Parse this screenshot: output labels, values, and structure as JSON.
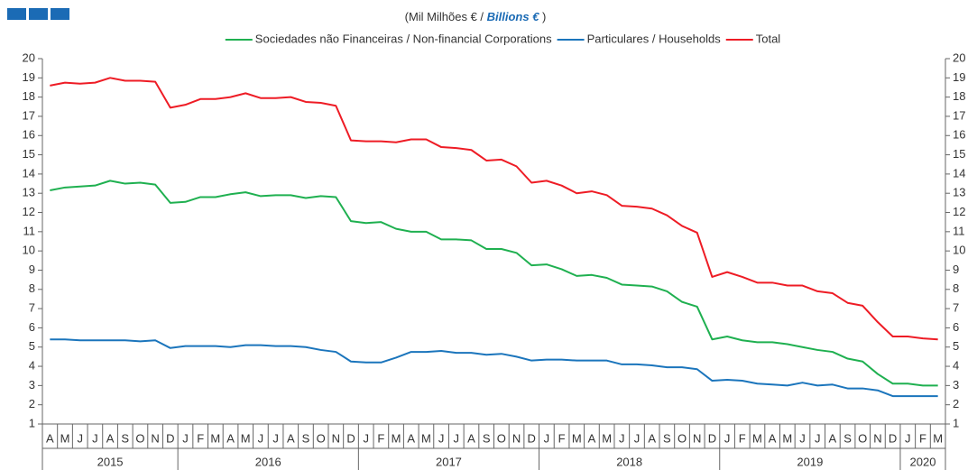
{
  "chart_data": {
    "type": "line",
    "title": {
      "pt": "(Mil Milhões € / ",
      "en": "Billions  €",
      "close": " )"
    },
    "categories": [
      "A",
      "M",
      "J",
      "J",
      "A",
      "S",
      "O",
      "N",
      "D",
      "J",
      "F",
      "M",
      "A",
      "M",
      "J",
      "J",
      "A",
      "S",
      "O",
      "N",
      "D",
      "J",
      "F",
      "M",
      "A",
      "M",
      "J",
      "J",
      "A",
      "S",
      "O",
      "N",
      "D",
      "J",
      "F",
      "M",
      "A",
      "M",
      "J",
      "J",
      "A",
      "S",
      "O",
      "N",
      "D",
      "J",
      "F",
      "M",
      "A",
      "M",
      "J",
      "J",
      "A",
      "S",
      "O",
      "N",
      "D",
      "J",
      "F",
      "M"
    ],
    "years": [
      "2015",
      "2015",
      "2015",
      "2015",
      "2015",
      "2015",
      "2015",
      "2015",
      "2015",
      "2016",
      "2016",
      "2016",
      "2016",
      "2016",
      "2016",
      "2016",
      "2016",
      "2016",
      "2016",
      "2016",
      "2016",
      "2017",
      "2017",
      "2017",
      "2017",
      "2017",
      "2017",
      "2017",
      "2017",
      "2017",
      "2017",
      "2017",
      "2017",
      "2018",
      "2018",
      "2018",
      "2018",
      "2018",
      "2018",
      "2018",
      "2018",
      "2018",
      "2018",
      "2018",
      "2018",
      "2019",
      "2019",
      "2019",
      "2019",
      "2019",
      "2019",
      "2019",
      "2019",
      "2019",
      "2019",
      "2019",
      "2019",
      "2020",
      "2020",
      "2020"
    ],
    "series": [
      {
        "name": "Sociedades não Financeiras / Non-financial Corporations",
        "color": "#1fb050",
        "values": [
          13.15,
          13.3,
          13.35,
          13.4,
          13.65,
          13.5,
          13.55,
          13.45,
          12.5,
          12.55,
          12.8,
          12.8,
          12.95,
          13.05,
          12.85,
          12.9,
          12.9,
          12.75,
          12.85,
          12.8,
          11.55,
          11.45,
          11.5,
          11.15,
          11.0,
          11.0,
          10.6,
          10.6,
          10.55,
          10.1,
          10.1,
          9.9,
          9.25,
          9.3,
          9.05,
          8.7,
          8.75,
          8.6,
          8.25,
          8.2,
          8.15,
          7.9,
          7.35,
          7.1,
          5.4,
          5.55,
          5.35,
          5.25,
          5.25,
          5.15,
          5.0,
          4.85,
          4.75,
          4.4,
          4.25,
          3.6,
          3.1,
          3.1,
          3.0,
          3.0
        ]
      },
      {
        "name": "Particulares / Households",
        "color": "#1b75bc",
        "values": [
          5.4,
          5.4,
          5.35,
          5.35,
          5.35,
          5.35,
          5.3,
          5.35,
          4.95,
          5.05,
          5.05,
          5.05,
          5.0,
          5.1,
          5.1,
          5.05,
          5.05,
          5.0,
          4.85,
          4.75,
          4.25,
          4.2,
          4.2,
          4.45,
          4.75,
          4.75,
          4.8,
          4.7,
          4.7,
          4.6,
          4.65,
          4.5,
          4.3,
          4.35,
          4.35,
          4.3,
          4.3,
          4.3,
          4.1,
          4.1,
          4.05,
          3.95,
          3.95,
          3.85,
          3.25,
          3.3,
          3.25,
          3.1,
          3.05,
          3.0,
          3.15,
          3.0,
          3.05,
          2.85,
          2.85,
          2.75,
          2.45,
          2.45,
          2.45,
          2.45
        ]
      },
      {
        "name": "Total",
        "color": "#ee1c25",
        "values": [
          18.6,
          18.75,
          18.7,
          18.75,
          19.0,
          18.85,
          18.85,
          18.8,
          17.45,
          17.6,
          17.9,
          17.9,
          18.0,
          18.2,
          17.95,
          17.95,
          18.0,
          17.75,
          17.7,
          17.55,
          15.75,
          15.7,
          15.7,
          15.65,
          15.8,
          15.8,
          15.4,
          15.35,
          15.25,
          14.7,
          14.75,
          14.4,
          13.55,
          13.65,
          13.4,
          13.0,
          13.1,
          12.9,
          12.35,
          12.3,
          12.2,
          11.85,
          11.3,
          10.95,
          8.65,
          8.9,
          8.65,
          8.35,
          8.35,
          8.2,
          8.2,
          7.9,
          7.8,
          7.3,
          7.15,
          6.3,
          5.55,
          5.55,
          5.45,
          5.4
        ]
      }
    ],
    "ylim": [
      1,
      20
    ],
    "yticks": [
      1,
      2,
      3,
      4,
      5,
      6,
      7,
      8,
      9,
      10,
      11,
      12,
      13,
      14,
      15,
      16,
      17,
      18,
      19,
      20
    ],
    "legend": "top",
    "grid": false
  }
}
